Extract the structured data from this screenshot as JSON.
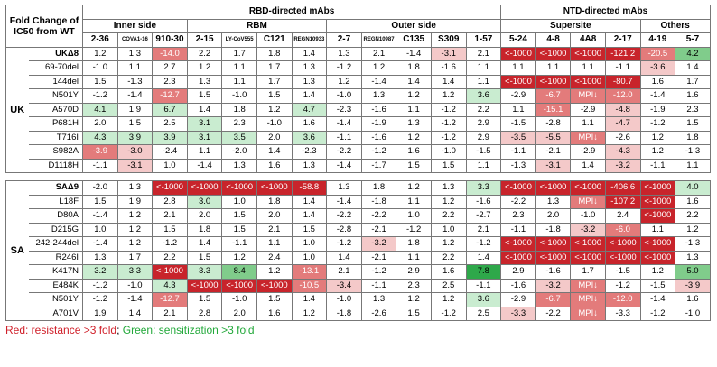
{
  "header": {
    "title": "Fold Change of IC50 from WT",
    "rbd_group": "RBD-directed mAbs",
    "ntd_group": "NTD-directed mAbs",
    "subgroups": [
      {
        "label": "Inner side",
        "span": 3
      },
      {
        "label": "RBM",
        "span": 4
      },
      {
        "label": "Outer side",
        "span": 5
      },
      {
        "label": "Supersite",
        "span": 4
      },
      {
        "label": "Others",
        "span": 2
      }
    ],
    "antibodies": [
      "2-36",
      "COVA1-16",
      "910-30",
      "2-15",
      "LY-CoV555",
      "C121",
      "REGN10933",
      "2-7",
      "REGN10987",
      "C135",
      "S309",
      "1-57",
      "5-24",
      "4-8",
      "4A8",
      "2-17",
      "4-19",
      "5-7"
    ]
  },
  "colors": {
    "r1": "#f4c9c9",
    "r2": "#e37b7b",
    "r3": "#c8242b",
    "g1": "#c9ecd0",
    "g2": "#80cc8b",
    "g3": "#2ea84a",
    "legend_red": "#d0202a",
    "legend_green": "#22a83a"
  },
  "sections": [
    {
      "country": "UK",
      "rows": [
        {
          "mut": "UKΔ8",
          "bold": true,
          "values": [
            "1.2",
            "1.3",
            "-14.0",
            "2.2",
            "1.7",
            "1.8",
            "1.4",
            "1.3",
            "2.1",
            "-1.4",
            "-3.1",
            "2.1",
            "<-1000",
            "<-1000",
            "<-1000",
            "-121.2",
            "-20.5",
            "4.2"
          ],
          "colors": [
            "",
            "",
            "r2",
            "",
            "",
            "",
            "",
            "",
            "",
            "",
            "r1",
            "",
            "r3",
            "r3",
            "r3",
            "r3",
            "r2",
            "g2"
          ]
        },
        {
          "mut": "69-70del",
          "values": [
            "-1.0",
            "1.1",
            "2.7",
            "1.2",
            "1.1",
            "1.7",
            "1.3",
            "-1.2",
            "1.2",
            "1.8",
            "-1.6",
            "1.1",
            "1.1",
            "1.1",
            "1.1",
            "-1.1",
            "-3.6",
            "1.4"
          ],
          "colors": [
            "",
            "",
            "",
            "",
            "",
            "",
            "",
            "",
            "",
            "",
            "",
            "",
            "",
            "",
            "",
            "",
            "r1",
            ""
          ]
        },
        {
          "mut": "144del",
          "values": [
            "1.5",
            "-1.3",
            "2.3",
            "1.3",
            "1.1",
            "1.7",
            "1.3",
            "1.2",
            "-1.4",
            "1.4",
            "1.4",
            "1.1",
            "<-1000",
            "<-1000",
            "<-1000",
            "-80.7",
            "1.6",
            "1.7"
          ],
          "colors": [
            "",
            "",
            "",
            "",
            "",
            "",
            "",
            "",
            "",
            "",
            "",
            "",
            "r3",
            "r3",
            "r3",
            "r3",
            "",
            ""
          ]
        },
        {
          "mut": "N501Y",
          "values": [
            "-1.2",
            "-1.4",
            "-12.7",
            "1.5",
            "-1.0",
            "1.5",
            "1.4",
            "-1.0",
            "1.3",
            "1.2",
            "1.2",
            "3.6",
            "-2.9",
            "-6.7",
            "MPI↓",
            "-12.0",
            "-1.4",
            "1.6"
          ],
          "colors": [
            "",
            "",
            "r2",
            "",
            "",
            "",
            "",
            "",
            "",
            "",
            "",
            "g1",
            "",
            "r2",
            "r2",
            "r2",
            "",
            ""
          ]
        },
        {
          "mut": "A570D",
          "values": [
            "4.1",
            "1.9",
            "6.7",
            "1.4",
            "1.8",
            "1.2",
            "4.7",
            "-2.3",
            "-1.6",
            "1.1",
            "-1.2",
            "2.2",
            "1.1",
            "-15.1",
            "-2.9",
            "-4.8",
            "-1.9",
            "2.3"
          ],
          "colors": [
            "g1",
            "",
            "g1",
            "",
            "",
            "",
            "g1",
            "",
            "",
            "",
            "",
            "",
            "",
            "r2",
            "",
            "r1",
            "",
            ""
          ]
        },
        {
          "mut": "P681H",
          "values": [
            "2.0",
            "1.5",
            "2.5",
            "3.1",
            "2.3",
            "-1.0",
            "1.6",
            "-1.4",
            "-1.9",
            "1.3",
            "-1.2",
            "2.9",
            "-1.5",
            "-2.8",
            "1.1",
            "-4.7",
            "-1.2",
            "1.5"
          ],
          "colors": [
            "",
            "",
            "",
            "g1",
            "",
            "",
            "",
            "",
            "",
            "",
            "",
            "",
            "",
            "",
            "",
            "r1",
            "",
            ""
          ]
        },
        {
          "mut": "T716I",
          "values": [
            "4.3",
            "3.9",
            "3.9",
            "3.1",
            "3.5",
            "2.0",
            "3.6",
            "-1.1",
            "-1.6",
            "1.2",
            "-1.2",
            "2.9",
            "-3.5",
            "-5.5",
            "MPI↓",
            "-2.6",
            "1.2",
            "1.8"
          ],
          "colors": [
            "g1",
            "g1",
            "g1",
            "g1",
            "g1",
            "",
            "g1",
            "",
            "",
            "",
            "",
            "",
            "r1",
            "r1",
            "r2",
            "",
            "",
            ""
          ]
        },
        {
          "mut": "S982A",
          "values": [
            "-3.9",
            "-3.0",
            "-2.4",
            "1.1",
            "-2.0",
            "1.4",
            "-2.3",
            "-2.2",
            "-1.2",
            "1.6",
            "-1.0",
            "-1.5",
            "-1.1",
            "-2.1",
            "-2.9",
            "-4.3",
            "1.2",
            "-1.3"
          ],
          "colors": [
            "r2",
            "r1",
            "",
            "",
            "",
            "",
            "",
            "",
            "",
            "",
            "",
            "",
            "",
            "",
            "",
            "r1",
            "",
            ""
          ]
        },
        {
          "mut": "D1118H",
          "values": [
            "-1.1",
            "-3.1",
            "1.0",
            "-1.4",
            "1.3",
            "1.6",
            "1.3",
            "-1.4",
            "-1.7",
            "1.5",
            "1.5",
            "1.1",
            "-1.3",
            "-3.1",
            "1.4",
            "-3.2",
            "-1.1",
            "1.1"
          ],
          "colors": [
            "",
            "r1",
            "",
            "",
            "",
            "",
            "",
            "",
            "",
            "",
            "",
            "",
            "",
            "r1",
            "",
            "r1",
            "",
            ""
          ]
        }
      ]
    },
    {
      "country": "SA",
      "rows": [
        {
          "mut": "SAΔ9",
          "bold": true,
          "values": [
            "-2.0",
            "1.3",
            "<-1000",
            "<-1000",
            "<-1000",
            "<-1000",
            "-58.8",
            "1.3",
            "1.8",
            "1.2",
            "1.3",
            "3.3",
            "<-1000",
            "<-1000",
            "<-1000",
            "-406.6",
            "<-1000",
            "4.0"
          ],
          "colors": [
            "",
            "",
            "r3",
            "r3",
            "r3",
            "r3",
            "r3",
            "",
            "",
            "",
            "",
            "g1",
            "r3",
            "r3",
            "r3",
            "r3",
            "r3",
            "g1"
          ]
        },
        {
          "mut": "L18F",
          "values": [
            "1.5",
            "1.9",
            "2.8",
            "3.0",
            "1.0",
            "1.8",
            "1.4",
            "-1.4",
            "-1.8",
            "1.1",
            "1.2",
            "-1.6",
            "-2.2",
            "1.3",
            "MPI↓",
            "-107.2",
            "<-1000",
            "1.6"
          ],
          "colors": [
            "",
            "",
            "",
            "g1",
            "",
            "",
            "",
            "",
            "",
            "",
            "",
            "",
            "",
            "",
            "r2",
            "r3",
            "r3",
            ""
          ]
        },
        {
          "mut": "D80A",
          "values": [
            "-1.4",
            "1.2",
            "2.1",
            "2.0",
            "1.5",
            "2.0",
            "1.4",
            "-2.2",
            "-2.2",
            "1.0",
            "2.2",
            "-2.7",
            "2.3",
            "2.0",
            "-1.0",
            "2.4",
            "<-1000",
            "2.2"
          ],
          "colors": [
            "",
            "",
            "",
            "",
            "",
            "",
            "",
            "",
            "",
            "",
            "",
            "",
            "",
            "",
            "",
            "",
            "r3",
            ""
          ]
        },
        {
          "mut": "D215G",
          "values": [
            "1.0",
            "1.2",
            "1.5",
            "1.8",
            "1.5",
            "2.1",
            "1.5",
            "-2.8",
            "-2.1",
            "-1.2",
            "1.0",
            "2.1",
            "-1.1",
            "-1.8",
            "-3.2",
            "-6.0",
            "1.1",
            "1.2"
          ],
          "colors": [
            "",
            "",
            "",
            "",
            "",
            "",
            "",
            "",
            "",
            "",
            "",
            "",
            "",
            "",
            "r1",
            "r2",
            "",
            ""
          ]
        },
        {
          "mut": "242-244del",
          "values": [
            "-1.4",
            "1.2",
            "-1.2",
            "1.4",
            "-1.1",
            "1.1",
            "1.0",
            "-1.2",
            "-3.2",
            "1.8",
            "1.2",
            "-1.2",
            "<-1000",
            "<-1000",
            "<-1000",
            "<-1000",
            "<-1000",
            "-1.3"
          ],
          "colors": [
            "",
            "",
            "",
            "",
            "",
            "",
            "",
            "",
            "r1",
            "",
            "",
            "",
            "r3",
            "r3",
            "r3",
            "r3",
            "r3",
            ""
          ]
        },
        {
          "mut": "R246I",
          "values": [
            "1.3",
            "1.7",
            "2.2",
            "1.5",
            "1.2",
            "2.4",
            "1.0",
            "1.4",
            "-2.1",
            "1.1",
            "2.2",
            "1.4",
            "<-1000",
            "<-1000",
            "<-1000",
            "<-1000",
            "<-1000",
            "1.3"
          ],
          "colors": [
            "",
            "",
            "",
            "",
            "",
            "",
            "",
            "",
            "",
            "",
            "",
            "",
            "r3",
            "r3",
            "r3",
            "r3",
            "r3",
            ""
          ]
        },
        {
          "mut": "K417N",
          "values": [
            "3.2",
            "3.3",
            "<-1000",
            "3.3",
            "8.4",
            "1.2",
            "-13.1",
            "2.1",
            "-1.2",
            "2.9",
            "1.6",
            "7.8",
            "2.9",
            "-1.6",
            "1.7",
            "-1.5",
            "1.2",
            "5.0"
          ],
          "colors": [
            "g1",
            "g1",
            "r3",
            "g1",
            "g2",
            "",
            "r2",
            "",
            "",
            "",
            "",
            "g3",
            "",
            "",
            "",
            "",
            "",
            "g2"
          ]
        },
        {
          "mut": "E484K",
          "values": [
            "-1.2",
            "-1.0",
            "4.3",
            "<-1000",
            "<-1000",
            "<-1000",
            "-10.5",
            "-3.4",
            "-1.1",
            "2.3",
            "2.5",
            "-1.1",
            "-1.6",
            "-3.2",
            "MPI↓",
            "-1.2",
            "-1.5",
            "-3.9"
          ],
          "colors": [
            "",
            "",
            "g1",
            "r3",
            "r3",
            "r3",
            "r2",
            "r1",
            "",
            "",
            "",
            "",
            "",
            "r1",
            "r2",
            "",
            "",
            "r1"
          ]
        },
        {
          "mut": "N501Y",
          "values": [
            "-1.2",
            "-1.4",
            "-12.7",
            "1.5",
            "-1.0",
            "1.5",
            "1.4",
            "-1.0",
            "1.3",
            "1.2",
            "1.2",
            "3.6",
            "-2.9",
            "-6.7",
            "MPI↓",
            "-12.0",
            "-1.4",
            "1.6"
          ],
          "colors": [
            "",
            "",
            "r2",
            "",
            "",
            "",
            "",
            "",
            "",
            "",
            "",
            "g1",
            "",
            "r2",
            "r2",
            "r2",
            "",
            ""
          ]
        },
        {
          "mut": "A701V",
          "values": [
            "1.9",
            "1.4",
            "2.1",
            "2.8",
            "2.0",
            "1.6",
            "1.2",
            "-1.8",
            "-2.6",
            "1.5",
            "-1.2",
            "2.5",
            "-3.3",
            "-2.2",
            "MPI↓",
            "-3.3",
            "-1.2",
            "-1.0"
          ],
          "colors": [
            "",
            "",
            "",
            "",
            "",
            "",
            "",
            "",
            "",
            "",
            "",
            "",
            "r1",
            "",
            "r2",
            "",
            "",
            ""
          ]
        }
      ]
    }
  ],
  "legend": {
    "red": "Red: resistance >3 fold",
    "separator": "; ",
    "green": "Green: sensitization >3 fold"
  }
}
